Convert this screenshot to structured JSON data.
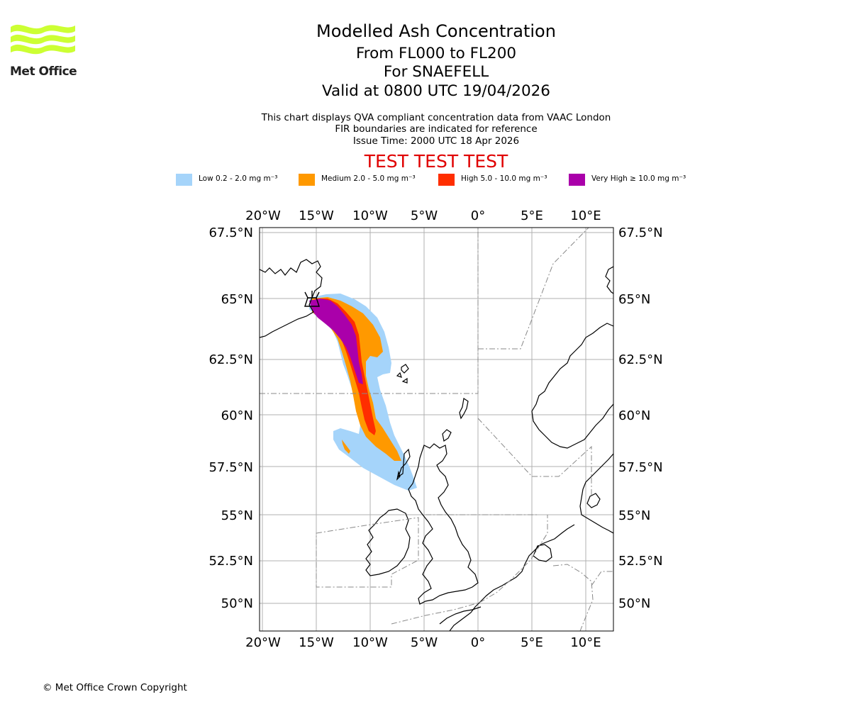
{
  "logo": {
    "text": "Met Office",
    "color": "#ccff33"
  },
  "header": {
    "title": "Modelled Ash Concentration",
    "levels": "From FL000 to FL200",
    "volcano": "For SNAEFELL",
    "valid": "Valid at 0800 UTC 19/04/2026",
    "description": "This chart displays QVA compliant concentration data from VAAC London",
    "fir_note": "FIR boundaries are indicated for reference",
    "issue_time": "Issue Time: 2000 UTC 18 Apr 2026",
    "test_banner": "TEST TEST TEST",
    "test_color": "#e00000"
  },
  "legend": [
    {
      "label": "Low 0.2 - 2.0 mg m⁻³",
      "color": "#a5d4fa"
    },
    {
      "label": "Medium 2.0 - 5.0 mg m⁻³",
      "color": "#ff9900"
    },
    {
      "label": "High 5.0 - 10.0 mg m⁻³",
      "color": "#ff2e00"
    },
    {
      "label": "Very High  ≥  10.0 mg m⁻³",
      "color": "#aa00aa"
    }
  ],
  "map": {
    "lon_ticks": [
      "20°W",
      "15°W",
      "10°W",
      "5°W",
      "0°",
      "5°E",
      "10°E"
    ],
    "lat_ticks": [
      "67.5°N",
      "65°N",
      "62.5°N",
      "60°N",
      "57.5°N",
      "55°N",
      "52.5°N",
      "50°N"
    ],
    "lon_range": [
      -20.5,
      12.5
    ],
    "lat_range": [
      48.5,
      67.7
    ]
  },
  "footer": {
    "copyright": "© Met Office Crown Copyright"
  }
}
